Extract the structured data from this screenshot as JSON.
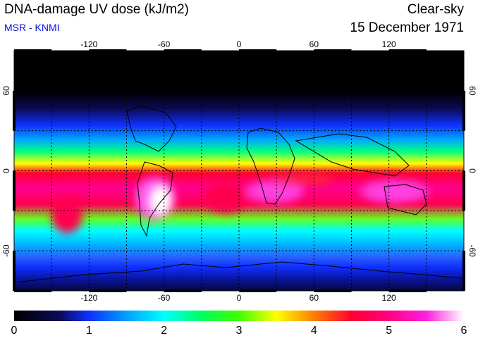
{
  "header": {
    "title": "DNA-damage UV dose (kJ/m2)",
    "source": "MSR - KNMI",
    "sky_condition": "Clear-sky",
    "date": "15 December 1971"
  },
  "colors": {
    "source_text": "#0a10d8",
    "frame": "#000000",
    "grid": "#000000",
    "coastline": "#000000"
  },
  "map": {
    "projection": "equirectangular",
    "lon_range": [
      -180,
      180
    ],
    "lat_range": [
      -90,
      90
    ],
    "lon_ticks": [
      {
        "value": -120,
        "label": "-120"
      },
      {
        "value": -60,
        "label": "-60"
      },
      {
        "value": 0,
        "label": "0"
      },
      {
        "value": 60,
        "label": "60"
      },
      {
        "value": 120,
        "label": "120"
      }
    ],
    "lat_ticks": [
      {
        "value": 60,
        "label": "60"
      },
      {
        "value": 0,
        "label": "0"
      },
      {
        "value": -60,
        "label": "-60"
      }
    ]
  },
  "colorbar": {
    "min": 0,
    "max": 6,
    "ticks": [
      "0",
      "1",
      "2",
      "3",
      "4",
      "5",
      "6"
    ],
    "stops": [
      {
        "value": 0.0,
        "color": "#000000"
      },
      {
        "value": 0.6,
        "color": "#0a0a55"
      },
      {
        "value": 1.0,
        "color": "#1030ff"
      },
      {
        "value": 1.5,
        "color": "#00a0ff"
      },
      {
        "value": 2.0,
        "color": "#00ffff"
      },
      {
        "value": 2.5,
        "color": "#00ff60"
      },
      {
        "value": 3.0,
        "color": "#40ff00"
      },
      {
        "value": 3.5,
        "color": "#ffff00"
      },
      {
        "value": 4.0,
        "color": "#ff8000"
      },
      {
        "value": 4.5,
        "color": "#ff0030"
      },
      {
        "value": 5.0,
        "color": "#ff0080"
      },
      {
        "value": 5.5,
        "color": "#ff20e0"
      },
      {
        "value": 6.0,
        "color": "#ffffff"
      }
    ]
  }
}
